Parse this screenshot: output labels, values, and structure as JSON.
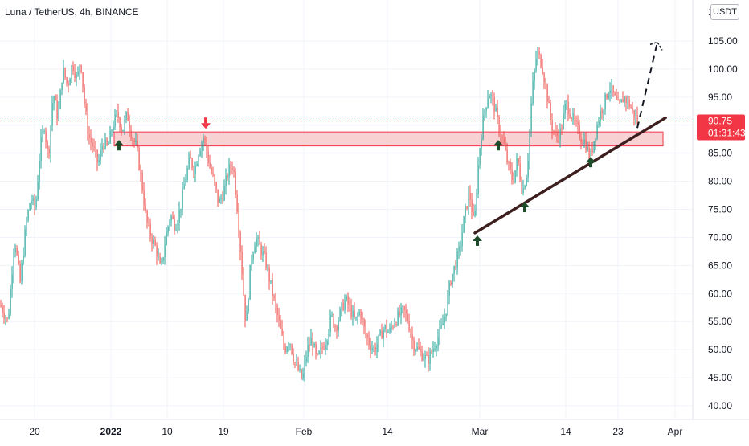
{
  "header": {
    "title": "Luna / TetherUS, 4h, BINANCE",
    "unit": "USDT"
  },
  "chart_data": {
    "type": "candlestick",
    "symbol": "Luna / TetherUS",
    "interval": "4h",
    "exchange": "BINANCE",
    "y_ticks": [
      "105.00",
      "100.00",
      "95.00",
      "90.00",
      "85.00",
      "80.00",
      "75.00",
      "70.00",
      "65.00",
      "60.00",
      "55.00",
      "50.00",
      "45.00",
      "40.00"
    ],
    "ylim": [
      38.5,
      110
    ],
    "x_ticks": [
      "20",
      "2022",
      "10",
      "19",
      "Feb",
      "14",
      "Mar",
      "14",
      "23",
      "Apr"
    ],
    "current_price": "90.75",
    "countdown": "01:31:43",
    "colors": {
      "up": "#26a69a",
      "down": "#ef5350",
      "price_line": "#f23645",
      "zone_fill": "#f6c1c4",
      "zone_border": "#f23645",
      "trendline": "#3d1f1f",
      "arrow_up": "#1f4d2b",
      "arrow_down": "#f23645"
    },
    "resistance_zone": [
      86.3,
      88.8
    ],
    "trendline": [
      {
        "x": "Mar 1",
        "y": 70.8
      },
      {
        "x": "Mar 26",
        "y": 91.3
      }
    ],
    "projection": [
      {
        "x": "Mar 25",
        "y": 89.5
      },
      {
        "x": "Mar 27",
        "y": 104.8
      }
    ],
    "markers": [
      {
        "type": "up",
        "at": "Jan 2",
        "y": 86.5
      },
      {
        "type": "down",
        "at": "Jan 15",
        "y": 89.5
      },
      {
        "type": "up",
        "at": "Mar 1",
        "y": 69.5
      },
      {
        "type": "up",
        "at": "Mar 4",
        "y": 86.5
      },
      {
        "type": "up",
        "at": "Mar 9",
        "y": 75.5
      },
      {
        "type": "up",
        "at": "Mar 19",
        "y": 83.5
      }
    ],
    "candles_note": "",
    "path": [
      {
        "x": 0,
        "y": 58
      },
      {
        "x": 10,
        "y": 55
      },
      {
        "x": 18,
        "y": 70
      },
      {
        "x": 25,
        "y": 62
      },
      {
        "x": 32,
        "y": 72
      },
      {
        "x": 38,
        "y": 77
      },
      {
        "x": 44,
        "y": 75
      },
      {
        "x": 50,
        "y": 86
      },
      {
        "x": 55,
        "y": 90
      },
      {
        "x": 60,
        "y": 84
      },
      {
        "x": 66,
        "y": 96
      },
      {
        "x": 72,
        "y": 91
      },
      {
        "x": 78,
        "y": 100
      },
      {
        "x": 84,
        "y": 97
      },
      {
        "x": 90,
        "y": 101
      },
      {
        "x": 96,
        "y": 98
      },
      {
        "x": 100,
        "y": 102
      },
      {
        "x": 105,
        "y": 94
      },
      {
        "x": 110,
        "y": 88
      },
      {
        "x": 116,
        "y": 86
      },
      {
        "x": 122,
        "y": 83
      },
      {
        "x": 128,
        "y": 87
      },
      {
        "x": 134,
        "y": 86
      },
      {
        "x": 140,
        "y": 90
      },
      {
        "x": 146,
        "y": 92
      },
      {
        "x": 152,
        "y": 89
      },
      {
        "x": 158,
        "y": 92
      },
      {
        "x": 164,
        "y": 88
      },
      {
        "x": 170,
        "y": 86
      },
      {
        "x": 176,
        "y": 80
      },
      {
        "x": 182,
        "y": 73
      },
      {
        "x": 188,
        "y": 70
      },
      {
        "x": 194,
        "y": 68
      },
      {
        "x": 200,
        "y": 64
      },
      {
        "x": 206,
        "y": 70
      },
      {
        "x": 212,
        "y": 74
      },
      {
        "x": 218,
        "y": 72
      },
      {
        "x": 224,
        "y": 75
      },
      {
        "x": 230,
        "y": 80
      },
      {
        "x": 236,
        "y": 84
      },
      {
        "x": 242,
        "y": 82
      },
      {
        "x": 248,
        "y": 86
      },
      {
        "x": 254,
        "y": 88
      },
      {
        "x": 260,
        "y": 83
      },
      {
        "x": 266,
        "y": 80
      },
      {
        "x": 272,
        "y": 76
      },
      {
        "x": 278,
        "y": 78
      },
      {
        "x": 284,
        "y": 82
      },
      {
        "x": 290,
        "y": 83
      },
      {
        "x": 296,
        "y": 74
      },
      {
        "x": 302,
        "y": 62
      },
      {
        "x": 306,
        "y": 54
      },
      {
        "x": 312,
        "y": 66
      },
      {
        "x": 318,
        "y": 70
      },
      {
        "x": 324,
        "y": 68
      },
      {
        "x": 330,
        "y": 66
      },
      {
        "x": 336,
        "y": 62
      },
      {
        "x": 342,
        "y": 58
      },
      {
        "x": 348,
        "y": 54
      },
      {
        "x": 354,
        "y": 50
      },
      {
        "x": 360,
        "y": 52
      },
      {
        "x": 366,
        "y": 48
      },
      {
        "x": 372,
        "y": 46
      },
      {
        "x": 376,
        "y": 44.5
      },
      {
        "x": 382,
        "y": 50
      },
      {
        "x": 388,
        "y": 52
      },
      {
        "x": 394,
        "y": 48
      },
      {
        "x": 400,
        "y": 50
      },
      {
        "x": 406,
        "y": 52
      },
      {
        "x": 412,
        "y": 56
      },
      {
        "x": 418,
        "y": 54
      },
      {
        "x": 424,
        "y": 57
      },
      {
        "x": 430,
        "y": 59
      },
      {
        "x": 436,
        "y": 57
      },
      {
        "x": 442,
        "y": 55
      },
      {
        "x": 448,
        "y": 57
      },
      {
        "x": 454,
        "y": 53
      },
      {
        "x": 460,
        "y": 51
      },
      {
        "x": 466,
        "y": 50
      },
      {
        "x": 472,
        "y": 52
      },
      {
        "x": 478,
        "y": 54
      },
      {
        "x": 484,
        "y": 53
      },
      {
        "x": 490,
        "y": 55
      },
      {
        "x": 496,
        "y": 56
      },
      {
        "x": 502,
        "y": 57
      },
      {
        "x": 508,
        "y": 55
      },
      {
        "x": 514,
        "y": 51
      },
      {
        "x": 520,
        "y": 50
      },
      {
        "x": 526,
        "y": 49
      },
      {
        "x": 532,
        "y": 48
      },
      {
        "x": 538,
        "y": 50
      },
      {
        "x": 544,
        "y": 52
      },
      {
        "x": 550,
        "y": 54
      },
      {
        "x": 556,
        "y": 58
      },
      {
        "x": 560,
        "y": 62
      },
      {
        "x": 566,
        "y": 65
      },
      {
        "x": 572,
        "y": 68
      },
      {
        "x": 578,
        "y": 74
      },
      {
        "x": 584,
        "y": 78
      },
      {
        "x": 590,
        "y": 72
      },
      {
        "x": 596,
        "y": 85
      },
      {
        "x": 602,
        "y": 92
      },
      {
        "x": 608,
        "y": 96
      },
      {
        "x": 614,
        "y": 94
      },
      {
        "x": 620,
        "y": 90
      },
      {
        "x": 626,
        "y": 87
      },
      {
        "x": 632,
        "y": 83
      },
      {
        "x": 638,
        "y": 80
      },
      {
        "x": 644,
        "y": 84
      },
      {
        "x": 650,
        "y": 78
      },
      {
        "x": 656,
        "y": 82
      },
      {
        "x": 662,
        "y": 96
      },
      {
        "x": 668,
        "y": 103
      },
      {
        "x": 674,
        "y": 101
      },
      {
        "x": 680,
        "y": 96
      },
      {
        "x": 686,
        "y": 90
      },
      {
        "x": 692,
        "y": 88
      },
      {
        "x": 698,
        "y": 89
      },
      {
        "x": 704,
        "y": 94
      },
      {
        "x": 710,
        "y": 92
      },
      {
        "x": 716,
        "y": 90
      },
      {
        "x": 722,
        "y": 88
      },
      {
        "x": 728,
        "y": 87
      },
      {
        "x": 734,
        "y": 84
      },
      {
        "x": 740,
        "y": 88
      },
      {
        "x": 746,
        "y": 92
      },
      {
        "x": 752,
        "y": 94
      },
      {
        "x": 758,
        "y": 97
      },
      {
        "x": 764,
        "y": 95
      },
      {
        "x": 770,
        "y": 93
      },
      {
        "x": 776,
        "y": 95
      },
      {
        "x": 782,
        "y": 94
      },
      {
        "x": 788,
        "y": 92
      },
      {
        "x": 794,
        "y": 90.75
      }
    ]
  }
}
